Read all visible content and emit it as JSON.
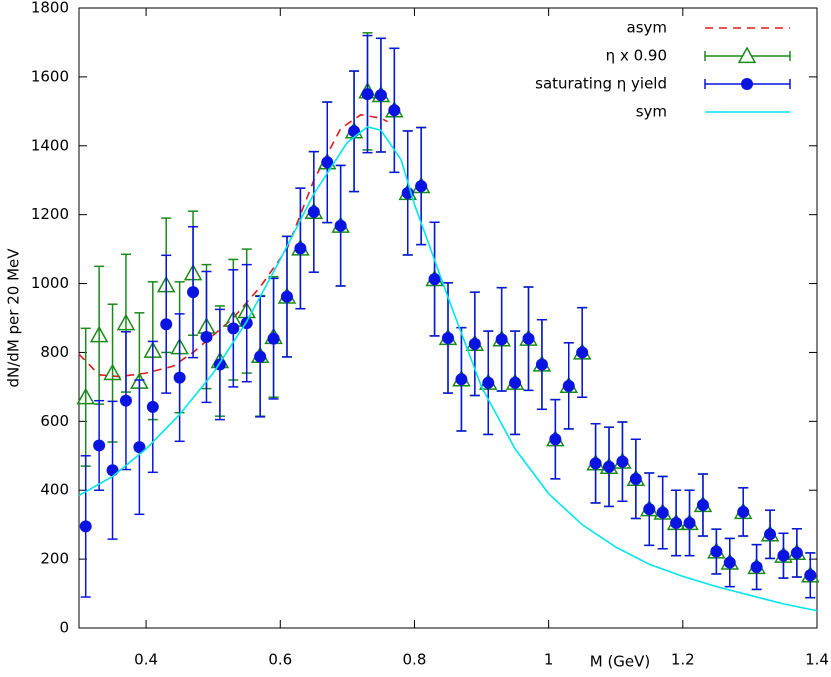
{
  "chart_data": {
    "type": "errorbar",
    "xlabel": "M (GeV)",
    "ylabel": "dN/dM per 20 MeV",
    "xlim": [
      0.3,
      1.4
    ],
    "ylim": [
      0,
      1800
    ],
    "xticks": [
      0.4,
      0.6,
      0.8,
      1,
      1.2,
      1.4
    ],
    "yticks": [
      0,
      200,
      400,
      600,
      800,
      1000,
      1200,
      1400,
      1600,
      1800
    ],
    "x": [
      0.31,
      0.33,
      0.35,
      0.37,
      0.39,
      0.41,
      0.43,
      0.45,
      0.47,
      0.49,
      0.51,
      0.53,
      0.55,
      0.57,
      0.59,
      0.61,
      0.63,
      0.65,
      0.67,
      0.69,
      0.71,
      0.73,
      0.75,
      0.77,
      0.79,
      0.81,
      0.83,
      0.85,
      0.87,
      0.89,
      0.91,
      0.93,
      0.95,
      0.97,
      0.99,
      1.01,
      1.03,
      1.05,
      1.07,
      1.09,
      1.11,
      1.13,
      1.15,
      1.17,
      1.19,
      1.21,
      1.23,
      1.25,
      1.27,
      1.29,
      1.31,
      1.33,
      1.35,
      1.37,
      1.39
    ],
    "series": [
      {
        "name": "asym",
        "kind": "line",
        "dash": true,
        "color": "#e41a1c",
        "x": [
          0.3,
          0.33,
          0.36,
          0.4,
          0.44,
          0.47,
          0.5,
          0.53,
          0.57,
          0.61,
          0.65,
          0.69,
          0.72,
          0.75,
          0.76
        ],
        "values": [
          795,
          735,
          730,
          740,
          760,
          800,
          850,
          900,
          990,
          1100,
          1300,
          1450,
          1490,
          1480,
          1470
        ]
      },
      {
        "name": "η x 0.90",
        "kind": "points",
        "marker": "triangle",
        "color": "#1a8a1a",
        "values": [
          670,
          850,
          740,
          885,
          715,
          805,
          995,
          815,
          1030,
          875,
          775,
          895,
          920,
          790,
          845,
          962,
          1102,
          1208,
          1352,
          1168,
          1442,
          1558,
          1547,
          1503,
          1263,
          1283,
          1013,
          842,
          722,
          825,
          712,
          838,
          712,
          840,
          765,
          548,
          703,
          800,
          478,
          468,
          483,
          433,
          345,
          335,
          305,
          305,
          357,
          222,
          190,
          337,
          177,
          272,
          210,
          218,
          153
        ],
        "errors": [
          200,
          200,
          200,
          200,
          200,
          200,
          195,
          190,
          180,
          180,
          160,
          175,
          180,
          175,
          175,
          175,
          175,
          175,
          175,
          175,
          175,
          170,
          165,
          180,
          180,
          170,
          165,
          160,
          150,
          150,
          150,
          150,
          150,
          150,
          130,
          115,
          125,
          130,
          115,
          115,
          115,
          115,
          105,
          105,
          95,
          95,
          90,
          65,
          70,
          70,
          65,
          70,
          65,
          70,
          65
        ]
      },
      {
        "name": "saturating η yield",
        "kind": "points",
        "marker": "circle",
        "color": "#0a14e0",
        "values": [
          295,
          530,
          458,
          660,
          525,
          642,
          882,
          727,
          975,
          845,
          765,
          870,
          885,
          788,
          840,
          962,
          1102,
          1208,
          1352,
          1168,
          1442,
          1550,
          1547,
          1503,
          1263,
          1283,
          1013,
          842,
          722,
          825,
          712,
          838,
          712,
          840,
          765,
          548,
          703,
          800,
          478,
          468,
          483,
          433,
          345,
          335,
          305,
          305,
          357,
          222,
          190,
          337,
          177,
          272,
          210,
          218,
          153
        ],
        "errors": [
          205,
          130,
          200,
          200,
          195,
          190,
          200,
          185,
          190,
          190,
          160,
          170,
          170,
          175,
          175,
          175,
          175,
          175,
          175,
          175,
          175,
          170,
          165,
          180,
          180,
          170,
          165,
          160,
          150,
          150,
          150,
          150,
          150,
          150,
          130,
          115,
          125,
          130,
          115,
          115,
          115,
          115,
          105,
          105,
          95,
          95,
          90,
          65,
          70,
          70,
          65,
          70,
          65,
          70,
          65
        ]
      },
      {
        "name": "sym",
        "kind": "line",
        "dash": false,
        "color": "#00e5ee",
        "x": [
          0.3,
          0.35,
          0.4,
          0.45,
          0.5,
          0.55,
          0.6,
          0.65,
          0.7,
          0.73,
          0.75,
          0.78,
          0.8,
          0.85,
          0.9,
          0.95,
          1.0,
          1.05,
          1.1,
          1.15,
          1.2,
          1.25,
          1.3,
          1.35,
          1.4
        ],
        "values": [
          385,
          440,
          520,
          620,
          740,
          890,
          1070,
          1260,
          1410,
          1455,
          1445,
          1360,
          1230,
          960,
          700,
          520,
          390,
          300,
          235,
          185,
          150,
          120,
          95,
          70,
          50
        ]
      }
    ]
  }
}
